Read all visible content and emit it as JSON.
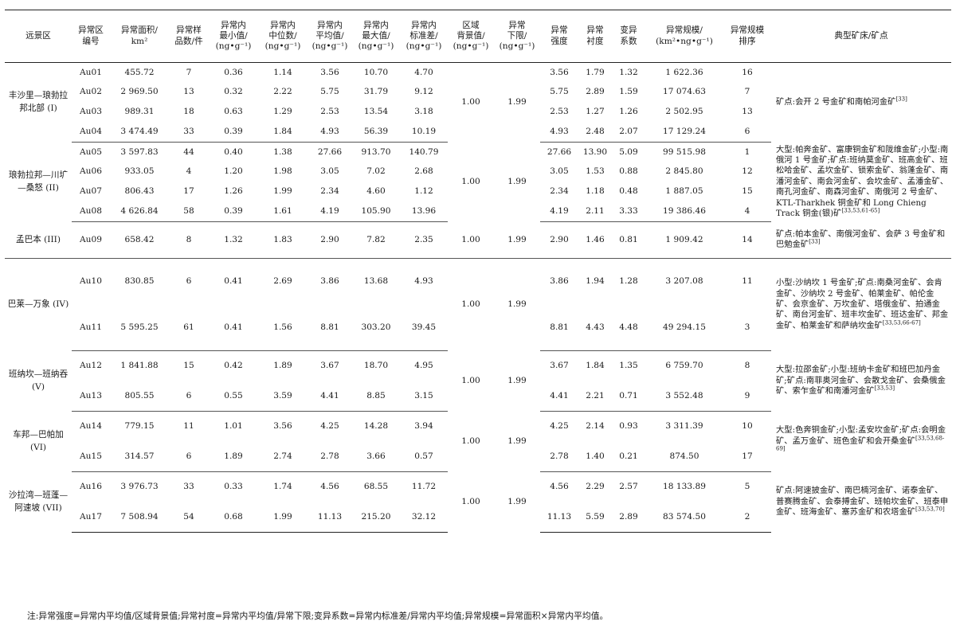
{
  "headers": [
    [
      "远景区"
    ],
    [
      "异常区",
      "编号"
    ],
    [
      "异常面积/",
      "km²"
    ],
    [
      "异常样",
      "品数/件"
    ],
    [
      "异常内",
      "最小值/",
      "(ng•g⁻¹)"
    ],
    [
      "异常内",
      "中位数/",
      "(ng•g⁻¹)"
    ],
    [
      "异常内",
      "平均值/",
      "(ng•g⁻¹)"
    ],
    [
      "异常内",
      "最大值/",
      "(ng•g⁻¹)"
    ],
    [
      "异常内",
      "标准差/",
      "(ng•g⁻¹)"
    ],
    [
      "区域",
      "背景值/",
      "(ng•g⁻¹)"
    ],
    [
      "异常",
      "下限/",
      "(ng•g⁻¹)"
    ],
    [
      "异常",
      "强度"
    ],
    [
      "异常",
      "衬度"
    ],
    [
      "变异",
      "系数"
    ],
    [
      "异常规模/",
      "(km²•ng•g⁻¹)"
    ],
    [
      "异常规模",
      "排序"
    ],
    [
      "典型矿床/矿点"
    ]
  ],
  "groups": [
    {
      "region": "丰沙里—琅勃拉邦北部 (I)",
      "background": "1.00",
      "lower_limit": "1.99",
      "deposits": "矿点:会开 2 号金矿和南帕河金矿",
      "deposits_ref": "[33]",
      "rows": [
        [
          "Au01",
          "455.72",
          "7",
          "0.36",
          "1.14",
          "3.56",
          "10.70",
          "4.70",
          "3.56",
          "1.79",
          "1.32",
          "1 622.36",
          "16"
        ],
        [
          "Au02",
          "2 969.50",
          "13",
          "0.32",
          "2.22",
          "5.75",
          "31.79",
          "9.12",
          "5.75",
          "2.89",
          "1.59",
          "17 074.63",
          "7"
        ],
        [
          "Au03",
          "989.31",
          "18",
          "0.63",
          "1.29",
          "2.53",
          "13.54",
          "3.18",
          "2.53",
          "1.27",
          "1.26",
          "2 502.95",
          "13"
        ],
        [
          "Au04",
          "3 474.49",
          "33",
          "0.39",
          "1.84",
          "4.93",
          "56.39",
          "10.19",
          "4.93",
          "2.48",
          "2.07",
          "17 129.24",
          "6"
        ]
      ]
    },
    {
      "region": "琅勃拉邦—川圹—桑怒 (II)",
      "background": "1.00",
      "lower_limit": "1.99",
      "deposits": "大型:帕奔金矿、富康铜金矿和陇维金矿;小型:南俄河 1 号金矿;矿点:班纳莫金矿、班高金矿、班松哈金矿、孟坎金矿、锁索金矿、翁蓬金矿、南潘河金矿、南会河金矿、会坎金矿、孟潘金矿、南孔河金矿、南森河金矿、南俄河 2 号金矿、KTL-Tharkhek 铜金矿和 Long Chieng Track 铜金(银)矿",
      "deposits_ref": "[33,53,61-65]",
      "rows": [
        [
          "Au05",
          "3 597.83",
          "44",
          "0.40",
          "1.38",
          "27.66",
          "913.70",
          "140.79",
          "27.66",
          "13.90",
          "5.09",
          "99 515.98",
          "1"
        ],
        [
          "Au06",
          "933.05",
          "4",
          "1.20",
          "1.98",
          "3.05",
          "7.02",
          "2.68",
          "3.05",
          "1.53",
          "0.88",
          "2 845.80",
          "12"
        ],
        [
          "Au07",
          "806.43",
          "17",
          "1.26",
          "1.99",
          "2.34",
          "4.60",
          "1.12",
          "2.34",
          "1.18",
          "0.48",
          "1 887.05",
          "15"
        ],
        [
          "Au08",
          "4 626.84",
          "58",
          "0.39",
          "1.61",
          "4.19",
          "105.90",
          "13.96",
          "4.19",
          "2.11",
          "3.33",
          "19 386.46",
          "4"
        ]
      ]
    },
    {
      "region": "孟巴本 (III)",
      "background": "1.00",
      "lower_limit": "1.99",
      "deposits": "矿点:帕本金矿、南俄河金矿、会萨 3 号金矿和巴勉金矿",
      "deposits_ref": "[33]",
      "rows": [
        [
          "Au09",
          "658.42",
          "8",
          "1.32",
          "1.83",
          "2.90",
          "7.82",
          "2.35",
          "2.90",
          "1.46",
          "0.81",
          "1 909.42",
          "14"
        ]
      ]
    },
    {
      "region": "巴莱—万象 (IV)",
      "background": "1.00",
      "lower_limit": "1.99",
      "deposits": "小型:沙纳坎 1 号金矿;矿点:南桑河金矿、会肯金矿、沙纳坎 2 号金矿、帕莱金矿、帕伦金矿、会京金矿、万坎金矿、塔俄金矿、拍通金矿、南台河金矿、班丰坎金矿、班达金矿、邦金金矿、柏莱金矿和萨纳坎金矿",
      "deposits_ref": "[33,53,66-67]",
      "rows": [
        [
          "Au10",
          "830.85",
          "6",
          "0.41",
          "2.69",
          "3.86",
          "13.68",
          "4.93",
          "3.86",
          "1.94",
          "1.28",
          "3 207.08",
          "11"
        ],
        [
          "Au11",
          "5 595.25",
          "61",
          "0.41",
          "1.56",
          "8.81",
          "303.20",
          "39.45",
          "8.81",
          "4.43",
          "4.48",
          "49 294.15",
          "3"
        ]
      ]
    },
    {
      "region": "班纳坎—班纳吞 (V)",
      "background": "1.00",
      "lower_limit": "1.99",
      "deposits": "大型:拉邵金矿;小型:班纳卡金矿和班巴加丹金矿;矿点:南菲奥河金矿、会散戈金矿、会桑俄金矿、索乍金矿和南潘河金矿",
      "deposits_ref": "[33,53]",
      "rows": [
        [
          "Au12",
          "1 841.88",
          "15",
          "0.42",
          "1.89",
          "3.67",
          "18.70",
          "4.95",
          "3.67",
          "1.84",
          "1.35",
          "6 759.70",
          "8"
        ],
        [
          "Au13",
          "805.55",
          "6",
          "0.55",
          "3.59",
          "4.41",
          "8.85",
          "3.15",
          "4.41",
          "2.21",
          "0.71",
          "3 552.48",
          "9"
        ]
      ]
    },
    {
      "region": "车邦—巴帕加 (VI)",
      "background": "1.00",
      "lower_limit": "1.99",
      "deposits": "大型:色奔铜金矿;小型:孟安坎金矿;矿点:会明金矿、孟万金矿、班色金矿和会开桑金矿",
      "deposits_ref": "[33,53,68-69]",
      "rows": [
        [
          "Au14",
          "779.15",
          "11",
          "1.01",
          "3.56",
          "4.25",
          "14.28",
          "3.94",
          "4.25",
          "2.14",
          "0.93",
          "3 311.39",
          "10"
        ],
        [
          "Au15",
          "314.57",
          "6",
          "1.89",
          "2.74",
          "2.78",
          "3.66",
          "0.57",
          "2.78",
          "1.40",
          "0.21",
          "874.50",
          "17"
        ]
      ]
    },
    {
      "region": "沙拉湾—班蓬—阿速坡 (VII)",
      "background": "1.00",
      "lower_limit": "1.99",
      "deposits": "矿点:阿速披金矿、南巴楠河金矿、诺泰金矿、普赛腾金矿、会泰搏金矿、班帕坎金矿、班泰申金矿、班海金矿、塞苏金矿和农塔金矿",
      "deposits_ref": "[33,53,70]",
      "rows": [
        [
          "Au16",
          "3 976.73",
          "33",
          "0.33",
          "1.74",
          "4.56",
          "68.55",
          "11.72",
          "4.56",
          "2.29",
          "2.57",
          "18 133.89",
          "5"
        ],
        [
          "Au17",
          "7 508.94",
          "54",
          "0.68",
          "1.99",
          "11.13",
          "215.20",
          "32.12",
          "11.13",
          "5.59",
          "2.89",
          "83 574.50",
          "2"
        ]
      ]
    }
  ],
  "note": "注:异常强度=异常内平均值/区域背景值;异常衬度=异常内平均值/异常下限;变异系数=异常内标准差/异常内平均值;异常规模=异常面积×异常内平均值。"
}
